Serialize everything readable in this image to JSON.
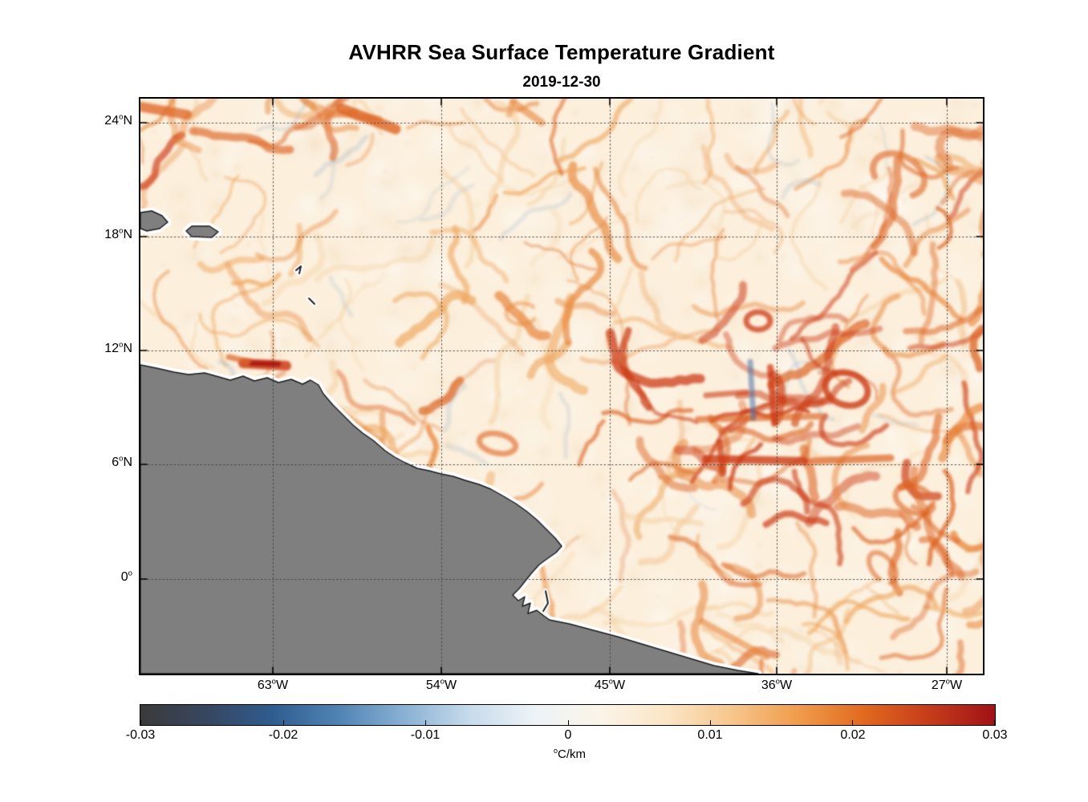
{
  "figure": {
    "title": "AVHRR Sea Surface Temperature Gradient",
    "subtitle": "2019-12-30"
  },
  "y_axis": {
    "ticks": [
      {
        "value": "24",
        "sup": "o",
        "dir": "N"
      },
      {
        "value": "18",
        "sup": "o",
        "dir": "N"
      },
      {
        "value": "12",
        "sup": "o",
        "dir": "N"
      },
      {
        "value": "6",
        "sup": "o",
        "dir": "N"
      },
      {
        "value": "0",
        "sup": "o",
        "dir": ""
      }
    ]
  },
  "x_axis": {
    "ticks": [
      {
        "value": "63",
        "sup": "o",
        "dir": "W"
      },
      {
        "value": "54",
        "sup": "o",
        "dir": "W"
      },
      {
        "value": "45",
        "sup": "o",
        "dir": "W"
      },
      {
        "value": "36",
        "sup": "o",
        "dir": "W"
      },
      {
        "value": "27",
        "sup": "o",
        "dir": "W"
      }
    ]
  },
  "colorbar": {
    "ticks": [
      "-0.03",
      "-0.02",
      "-0.01",
      "0",
      "0.01",
      "0.02",
      "0.03"
    ],
    "unit_sup": "o",
    "unit": "C/km"
  },
  "chart_data": {
    "type": "heatmap",
    "title": "AVHRR Sea Surface Temperature Gradient",
    "subtitle": "2019-12-30",
    "x_tick_labels": [
      "63°W",
      "54°W",
      "45°W",
      "36°W",
      "27°W"
    ],
    "y_tick_labels": [
      "24°N",
      "18°N",
      "12°N",
      "6°N",
      "0°"
    ],
    "lon_range_deg": [
      -70,
      -25
    ],
    "lat_range_deg": [
      -5,
      25.3
    ],
    "value_label": "°C/km",
    "value_range": [
      -0.03,
      0.03
    ],
    "colorbar_ticks": [
      -0.03,
      -0.02,
      -0.01,
      0,
      0.01,
      0.02,
      0.03
    ],
    "grid_style": "dotted",
    "region": "Tropical Atlantic / northern South America coast",
    "land_color": "#7f7f7f",
    "coast_halo_color": "#ffffff",
    "field_base_color": "#fcefdb",
    "negative_wisp_color": "#a9bccd",
    "filament_colors": [
      "#f5cf9e",
      "#efa75f",
      "#e8853a",
      "#dd6322",
      "#cc3a14",
      "#a81310"
    ],
    "colormap": [
      "#3a3a3a",
      "#374660",
      "#2f5c8e",
      "#4f83b3",
      "#88b0d3",
      "#c6dbeb",
      "#edf3f7",
      "#fbf4e8",
      "#fbe6c6",
      "#f7c68c",
      "#f09c4c",
      "#e16a1e",
      "#c63c1b",
      "#a01215"
    ]
  }
}
